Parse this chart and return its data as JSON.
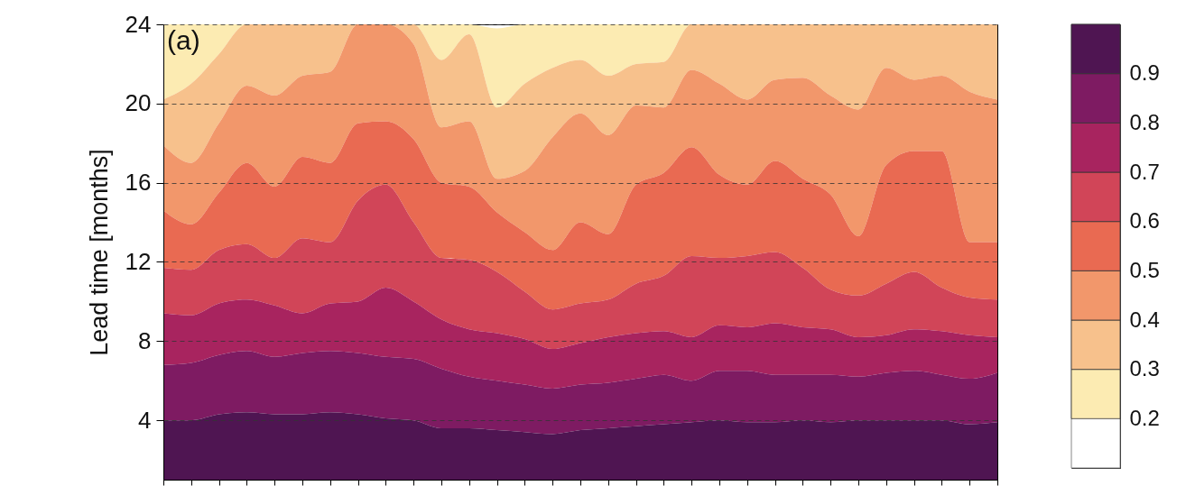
{
  "chart_data": {
    "type": "area",
    "ylabel": "Lead time [months]",
    "annotations": [
      "(a)"
    ],
    "categories": [
      null,
      null,
      null,
      null,
      null,
      null,
      null,
      null,
      null,
      null,
      null,
      null,
      null,
      null,
      null,
      null,
      null,
      null,
      null,
      null,
      null,
      null,
      null,
      null,
      null,
      null,
      null,
      null,
      null,
      null,
      null
    ],
    "series": [
      {
        "color": "#fcebb2",
        "values": [
          24,
          24,
          24,
          24,
          24,
          24,
          24,
          24,
          24,
          24,
          24,
          24,
          23.8,
          24,
          24,
          24,
          24,
          24,
          24,
          24,
          24,
          24,
          24,
          24,
          24,
          24,
          24,
          24,
          24,
          24,
          24
        ]
      },
      {
        "color": "#f7c18c",
        "values": [
          20.2,
          21.0,
          22.5,
          24,
          24,
          24,
          24,
          24,
          24,
          24,
          22.2,
          23.5,
          19.8,
          21.0,
          21.8,
          22.2,
          21.4,
          22.0,
          22.1,
          24,
          24,
          24,
          24,
          24,
          24,
          24,
          24,
          24,
          24,
          24,
          24
        ]
      },
      {
        "color": "#f2976b",
        "values": [
          17.9,
          17.0,
          19.0,
          20.9,
          20.4,
          21.4,
          21.6,
          24,
          24,
          23.0,
          18.8,
          19.1,
          16.2,
          16.6,
          18.3,
          19.5,
          18.4,
          19.9,
          19.8,
          21.7,
          21.0,
          20.2,
          21.2,
          21.3,
          20.4,
          19.7,
          21.8,
          21.2,
          21.4,
          20.6,
          20.2
        ]
      },
      {
        "color": "#e96a52",
        "values": [
          14.6,
          13.9,
          15.5,
          17.0,
          15.8,
          17.3,
          17.0,
          19.0,
          19.1,
          18.2,
          16.0,
          15.8,
          14.5,
          13.5,
          12.6,
          14.0,
          13.4,
          15.9,
          16.5,
          17.8,
          16.4,
          15.9,
          17.1,
          16.2,
          15.4,
          13.3,
          16.9,
          17.6,
          17.6,
          13.0,
          13.0
        ]
      },
      {
        "color": "#d14558",
        "values": [
          11.7,
          11.6,
          12.6,
          12.9,
          12.2,
          13.2,
          13.0,
          15.1,
          15.9,
          14.0,
          12.2,
          12.1,
          11.5,
          10.5,
          9.6,
          9.9,
          10.1,
          10.9,
          11.3,
          12.3,
          12.2,
          12.3,
          12.5,
          11.7,
          10.6,
          10.3,
          10.9,
          11.5,
          10.7,
          10.2,
          10.1
        ]
      },
      {
        "color": "#a8245f",
        "values": [
          9.4,
          9.3,
          9.9,
          10.1,
          9.8,
          9.4,
          9.9,
          10.0,
          10.7,
          10.0,
          9.1,
          8.6,
          8.4,
          8.1,
          7.6,
          7.9,
          8.2,
          8.4,
          8.5,
          8.2,
          8.8,
          8.7,
          8.9,
          8.7,
          8.6,
          8.2,
          8.3,
          8.6,
          8.5,
          8.3,
          8.2
        ]
      },
      {
        "color": "#7e1b62",
        "values": [
          6.8,
          6.9,
          7.3,
          7.5,
          7.2,
          7.4,
          7.5,
          7.4,
          7.2,
          7.1,
          6.6,
          6.2,
          6.0,
          5.8,
          5.6,
          5.8,
          5.9,
          6.1,
          6.3,
          6.0,
          6.5,
          6.5,
          6.3,
          6.3,
          6.3,
          6.2,
          6.4,
          6.5,
          6.3,
          6.1,
          6.4
        ]
      },
      {
        "color": "#4f1552",
        "values": [
          4.0,
          4.0,
          4.3,
          4.4,
          4.3,
          4.3,
          4.4,
          4.3,
          4.1,
          4.0,
          3.6,
          3.6,
          3.5,
          3.4,
          3.3,
          3.5,
          3.6,
          3.7,
          3.8,
          3.9,
          4.0,
          3.9,
          3.9,
          4.0,
          3.9,
          4.0,
          4.0,
          4.0,
          4.0,
          3.8,
          3.9
        ]
      }
    ],
    "ylim": [
      1,
      24
    ],
    "yticks": [
      4,
      8,
      12,
      16,
      20,
      24
    ],
    "grid": "y",
    "tick_labels": "y",
    "clim": [
      0.1,
      1.0
    ],
    "cticks": [
      0.2,
      0.3,
      0.4,
      0.5,
      0.6,
      0.7,
      0.8,
      0.9
    ]
  }
}
